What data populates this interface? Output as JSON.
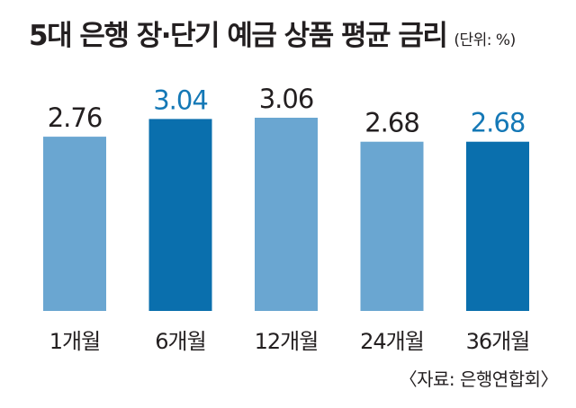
{
  "header": {
    "title": "5대 은행 장·단기 예금 상품 평균 금리",
    "unit": "(단위: %)"
  },
  "footer": {
    "source": "〈자료: 은행연합회〉"
  },
  "colors": {
    "bar_light": "#6aa6d1",
    "bar_dark": "#0a6fad",
    "label_default": "#231f20",
    "label_highlight": "#1478b6"
  },
  "chart_data": {
    "type": "bar",
    "title": "5대 은행 장·단기 예금 상품 평균 금리",
    "unit": "(단위: %)",
    "categories": [
      "1개월",
      "6개월",
      "12개월",
      "24개월",
      "36개월"
    ],
    "values": [
      2.76,
      3.04,
      3.06,
      2.68,
      2.68
    ],
    "value_labels": [
      "2.76",
      "3.04",
      "3.06",
      "2.68",
      "2.68"
    ],
    "highlighted": [
      false,
      true,
      false,
      false,
      true
    ],
    "ylim": [
      0,
      3.06
    ],
    "grid": false,
    "legend": "none"
  }
}
